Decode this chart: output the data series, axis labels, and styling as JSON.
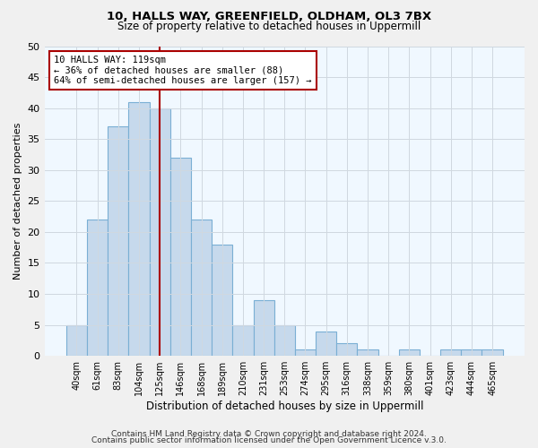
{
  "title1": "10, HALLS WAY, GREENFIELD, OLDHAM, OL3 7BX",
  "title2": "Size of property relative to detached houses in Uppermill",
  "xlabel": "Distribution of detached houses by size in Uppermill",
  "ylabel": "Number of detached properties",
  "bar_labels": [
    "40sqm",
    "61sqm",
    "83sqm",
    "104sqm",
    "125sqm",
    "146sqm",
    "168sqm",
    "189sqm",
    "210sqm",
    "231sqm",
    "253sqm",
    "274sqm",
    "295sqm",
    "316sqm",
    "338sqm",
    "359sqm",
    "380sqm",
    "401sqm",
    "423sqm",
    "444sqm",
    "465sqm"
  ],
  "bar_values": [
    5,
    22,
    37,
    41,
    40,
    32,
    22,
    18,
    5,
    9,
    5,
    1,
    4,
    2,
    1,
    0,
    1,
    0,
    1,
    1,
    1
  ],
  "bar_color": "#c6d9ec",
  "bar_edge_color": "#7aafd4",
  "reference_line_x": 4.5,
  "reference_line_label": "10 HALLS WAY: 119sqm",
  "annotation_line1": "← 36% of detached houses are smaller (88)",
  "annotation_line2": "64% of semi-detached houses are larger (157) →",
  "annotation_box_color": "#ffffff",
  "annotation_box_edge_color": "#aa0000",
  "vline_color": "#aa0000",
  "ylim": [
    0,
    50
  ],
  "yticks": [
    0,
    5,
    10,
    15,
    20,
    25,
    30,
    35,
    40,
    45,
    50
  ],
  "footer1": "Contains HM Land Registry data © Crown copyright and database right 2024.",
  "footer2": "Contains public sector information licensed under the Open Government Licence v.3.0.",
  "bg_color": "#f0f0f0",
  "plot_bg_color": "#f0f8ff",
  "grid_color": "#d0d8e0"
}
